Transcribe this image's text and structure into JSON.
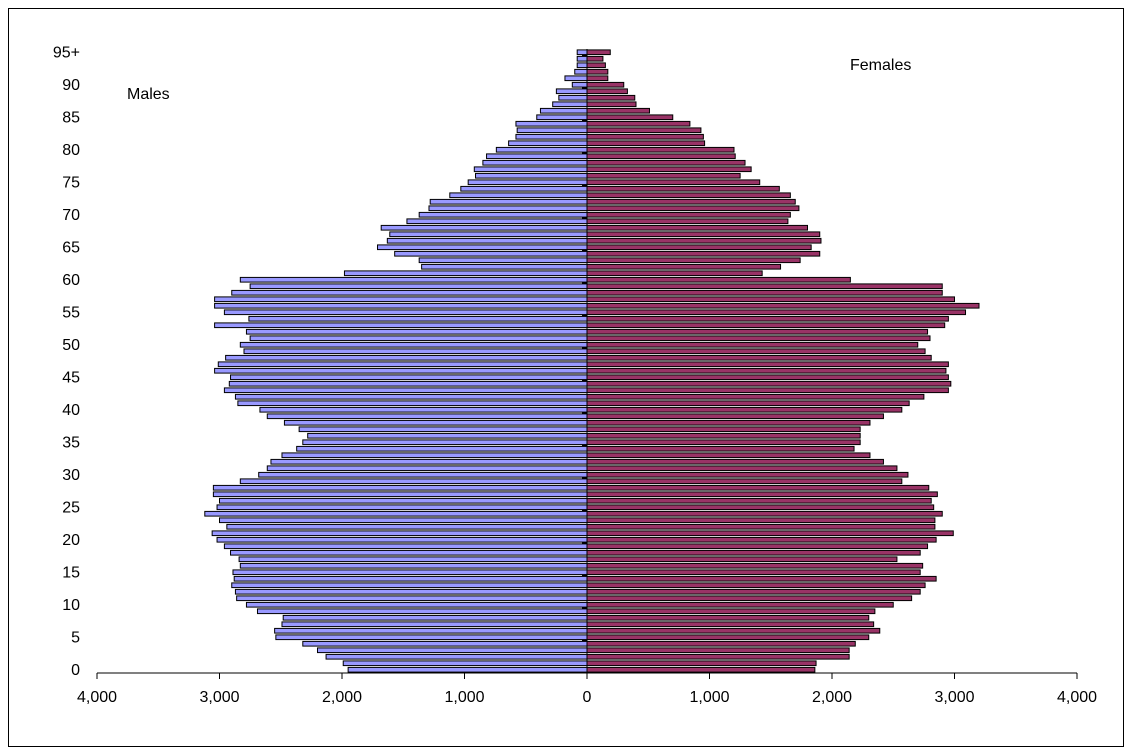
{
  "chart_data": {
    "type": "bar",
    "orientation": "horizontal",
    "layout": "population-pyramid",
    "y_tick_labels": [
      "0",
      "5",
      "10",
      "15",
      "20",
      "25",
      "30",
      "35",
      "40",
      "45",
      "50",
      "55",
      "60",
      "65",
      "70",
      "75",
      "80",
      "85",
      "90",
      "95+"
    ],
    "x_tick_labels": [
      "4,000",
      "3,000",
      "2,000",
      "1,000",
      "0",
      "1,000",
      "2,000",
      "3,000",
      "4,000"
    ],
    "xlim": [
      -4000,
      4000
    ],
    "ages": [
      0,
      1,
      2,
      3,
      4,
      5,
      6,
      7,
      8,
      9,
      10,
      11,
      12,
      13,
      14,
      15,
      16,
      17,
      18,
      19,
      20,
      21,
      22,
      23,
      24,
      25,
      26,
      27,
      28,
      29,
      30,
      31,
      32,
      33,
      34,
      35,
      36,
      37,
      38,
      39,
      40,
      41,
      42,
      43,
      44,
      45,
      46,
      47,
      48,
      49,
      50,
      51,
      52,
      53,
      54,
      55,
      56,
      57,
      58,
      59,
      60,
      61,
      62,
      63,
      64,
      65,
      66,
      67,
      68,
      69,
      70,
      71,
      72,
      73,
      74,
      75,
      76,
      77,
      78,
      79,
      80,
      81,
      82,
      83,
      84,
      85,
      86,
      87,
      88,
      89,
      90,
      91,
      92,
      93,
      94,
      95
    ],
    "series": [
      {
        "name": "Males",
        "color": "#9999ff",
        "values": [
          1950,
          1990,
          2130,
          2200,
          2320,
          2540,
          2550,
          2490,
          2480,
          2690,
          2780,
          2860,
          2870,
          2900,
          2880,
          2890,
          2830,
          2840,
          2910,
          2960,
          3020,
          3060,
          2940,
          3000,
          3120,
          3020,
          3000,
          3050,
          3050,
          2830,
          2680,
          2610,
          2580,
          2490,
          2370,
          2320,
          2280,
          2350,
          2470,
          2610,
          2670,
          2850,
          2870,
          2960,
          2920,
          2910,
          3040,
          3010,
          2950,
          2800,
          2830,
          2750,
          2780,
          3040,
          2760,
          2960,
          3040,
          3040,
          2900,
          2750,
          2830,
          1980,
          1350,
          1370,
          1570,
          1710,
          1630,
          1610,
          1680,
          1470,
          1370,
          1290,
          1280,
          1120,
          1030,
          970,
          910,
          920,
          850,
          820,
          740,
          640,
          580,
          570,
          580,
          410,
          380,
          280,
          230,
          250,
          120,
          180,
          100,
          80,
          80,
          80
        ]
      },
      {
        "name": "Females",
        "color": "#993366",
        "values": [
          1860,
          1870,
          2140,
          2140,
          2190,
          2300,
          2390,
          2340,
          2300,
          2350,
          2500,
          2650,
          2720,
          2760,
          2850,
          2720,
          2740,
          2530,
          2720,
          2780,
          2850,
          2990,
          2840,
          2840,
          2900,
          2830,
          2810,
          2860,
          2790,
          2570,
          2620,
          2530,
          2420,
          2310,
          2180,
          2230,
          2230,
          2230,
          2310,
          2420,
          2570,
          2630,
          2750,
          2950,
          2970,
          2950,
          2930,
          2950,
          2810,
          2760,
          2700,
          2800,
          2780,
          2920,
          2950,
          3090,
          3200,
          3000,
          2900,
          2900,
          2150,
          1430,
          1580,
          1740,
          1900,
          1830,
          1910,
          1900,
          1800,
          1640,
          1660,
          1730,
          1700,
          1660,
          1570,
          1410,
          1250,
          1340,
          1290,
          1210,
          1200,
          960,
          950,
          930,
          840,
          700,
          510,
          400,
          390,
          330,
          300,
          170,
          170,
          150,
          130,
          190
        ]
      }
    ],
    "annotations": [
      "Males",
      "Females"
    ],
    "grid": false,
    "legend": "none"
  }
}
